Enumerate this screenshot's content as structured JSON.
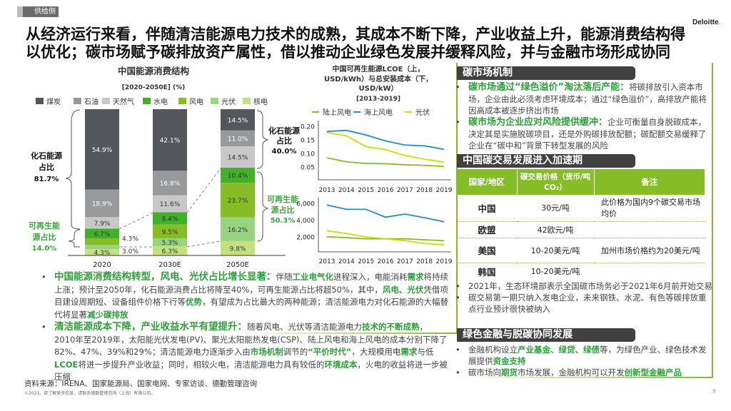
{
  "header": {
    "tag": "供给侧",
    "logo": "Deloitte",
    "title_line1": "从经济运行来看，伴随清洁能源电力技术的成熟，其成本不断下降，产业收益上升，能源消费结构得",
    "title_line2": "以优化；碳市场赋予碳排放资产属性，借以推动企业绿色发展并缓释风险，并与金融市场形成协同"
  },
  "colors": {
    "accent": "#86BC25",
    "highlight": "#2e9e3a",
    "header_bar": "#404040"
  },
  "chart_data": [
    {
      "type": "bar",
      "stacked": true,
      "title": "中国能源消费结构",
      "subtitle": "[2020-2050E] (%)",
      "categories": [
        "2020",
        "2030E",
        "2050E"
      ],
      "series": [
        {
          "name": "煤炭",
          "color": "#53565A",
          "values": [
            54.9,
            42.1,
            14.5
          ]
        },
        {
          "name": "石油",
          "color": "#97999B",
          "values": [
            18.9,
            16.8,
            11.0
          ]
        },
        {
          "name": "天然气",
          "color": "#C8C8C8",
          "values": [
            7.9,
            11.6,
            14.5
          ]
        },
        {
          "name": "水电",
          "color": "#43B02A",
          "values": [
            6.7,
            8.4,
            10.4
          ]
        },
        {
          "name": "风电",
          "color": "#86BC25",
          "values": [
            4.3,
            9.5,
            23.7
          ]
        },
        {
          "name": "光伏",
          "color": "#97D47F",
          "values": [
            3.0,
            5.3,
            16.2
          ]
        },
        {
          "name": "核电",
          "color": "#C4E17F",
          "values": [
            4.3,
            6.3,
            9.8
          ]
        }
      ],
      "annotations": {
        "fossil_label": "化石能源占比",
        "fossil_2020": "81.7%",
        "fossil_2050": "40.0%",
        "renew_label": "可再生能源占比",
        "renew_2020": "14.0%",
        "renew_2050": "50.3%"
      }
    },
    {
      "type": "line",
      "title": "中国可再生能源LCOE（上，USD/kWh）与总安装成本（下，USD/kW）",
      "subtitle": "[2013-2019]",
      "x": [
        "2013",
        "2014",
        "2015",
        "2016",
        "2017",
        "2018",
        "2019"
      ],
      "legend": "top",
      "panels": [
        {
          "ylim": [
            0,
            0.2
          ],
          "yticks": [
            "0.20",
            "0.15",
            "0.10",
            "0.05"
          ],
          "tickvals": [
            0.2,
            0.15,
            0.1,
            0.05
          ],
          "series": [
            {
              "name": "陆上风电",
              "color": "#86BC25",
              "values": [
                0.084,
                0.069,
                0.063,
                0.062,
                0.058,
                0.056,
                0.052
              ]
            },
            {
              "name": "海上风电",
              "color": "#1F8DC4",
              "values": [
                0.181,
                0.185,
                0.168,
                0.146,
                0.131,
                0.128,
                0.115
              ]
            },
            {
              "name": "光伏",
              "color": "#C9DD03",
              "values": [
                0.177,
                0.165,
                0.125,
                0.114,
                0.092,
                0.079,
                0.068
              ]
            }
          ]
        },
        {
          "ylim": [
            0,
            6500
          ],
          "yticks": [
            "6,000",
            "4,000",
            "2,000"
          ],
          "tickvals": [
            6000,
            4000,
            2000
          ],
          "series": [
            {
              "name": "陆上风电",
              "color": "#86BC25",
              "values": [
                2020,
                1910,
                1770,
                1770,
                1770,
                1660,
                1550
              ]
            },
            {
              "name": "海上风电",
              "color": "#1F8DC4",
              "values": [
                5800,
                5290,
                5290,
                4350,
                4720,
                4290,
                3810
              ]
            },
            {
              "name": "光伏",
              "color": "#C9DD03",
              "values": [
                2740,
                2400,
                2000,
                1770,
                1550,
                1210,
                1060
              ]
            }
          ]
        }
      ]
    }
  ],
  "left_bullets": [
    [
      {
        "t": "中国能源消费结构转型，风电、光伏占比增长显著：",
        "lead": true
      },
      {
        "t": "伴随"
      },
      {
        "t": "工业电气化",
        "hl": true
      },
      {
        "t": "进程深入，电能消耗"
      },
      {
        "t": "需求",
        "hl": true
      },
      {
        "t": "将持续上涨；预计至2050年，化石能源消费占比将降至40%，可再生能源占比将超50%，其中，"
      },
      {
        "t": "风电、光伏",
        "hl": true
      },
      {
        "t": "凭借项目建设周期短、设备组件价格下行等"
      },
      {
        "t": "优势",
        "hl": true
      },
      {
        "t": "，有望成为占比最大的两种能源；清洁能源电力对化石能源的大幅替代将显著"
      },
      {
        "t": "减少碳排放",
        "hl": true
      }
    ],
    [
      {
        "t": "清洁能源成本下降，产业收益水平有望提升：",
        "lead": true
      },
      {
        "t": "随着风电、光伏等清洁能源电力"
      },
      {
        "t": "技术的不断成熟",
        "hl": true
      },
      {
        "t": "，2010年至2019年，太阳能光伏发电(PV)、聚光太阳能热发电(CSP)、陆上风电和海上风电的成本分别下降了82%、47%、39%和29%；清洁能源电力逐渐步入由"
      },
      {
        "t": "市场机制",
        "hl": true
      },
      {
        "t": "调节的"
      },
      {
        "t": "“平价时代”",
        "hl": true
      },
      {
        "t": "，大规模用电"
      },
      {
        "t": "需求",
        "hl": true
      },
      {
        "t": "与低"
      },
      {
        "t": "LCOE",
        "hl": true
      },
      {
        "t": "将进一步提升产业收益；同时，相较火电，清洁能源电力具有较低的"
      },
      {
        "t": "环境成本",
        "hl": true
      },
      {
        "t": "，火电的收益将进一步被压缩"
      }
    ]
  ],
  "carbon_mechanism": {
    "title": "碳市场机制",
    "bullets": [
      [
        {
          "t": "碳市场通过“绿色溢价”淘汰落后产能：",
          "lead": true
        },
        {
          "t": "将碳排放引入资本市场，企业由此必须考虑环境成本；通过“绿色溢价”，高排放产能将因高成本被逐步挤出市场"
        }
      ],
      [
        {
          "t": "碳市场为企业应对风险提供缓冲：",
          "lead": true
        },
        {
          "t": "企业可衡量自身脱碳成本，决定其是实施脱碳项目，还是外购碳排放配额；碳配额交易缓释了企业在“碳中和”背景下转型发展的风险"
        }
      ]
    ]
  },
  "carbon_trading": {
    "title": "中国碳交易发展进入加速期",
    "columns": [
      "国家/地区",
      "碳交易价格（货币/吨CO₂）",
      "备注"
    ],
    "rows": [
      {
        "region": "中国",
        "price": "30元/吨",
        "note": "此价格为国内9个碳交易市场均价"
      },
      {
        "region": "欧盟",
        "price": "42欧元/吨",
        "note": ""
      },
      {
        "region": "美国",
        "price": "10-20美元/吨",
        "note": "加州市场价格约为20美元/吨"
      },
      {
        "region": "韩国",
        "price": "10-20美元/吨",
        "note": ""
      }
    ],
    "bullets": [
      [
        {
          "t": "2021年，生态环境部表示全国碳市场务必于2021年6月前开始交易"
        }
      ],
      [
        {
          "t": "碳交易第一期只纳入发电企业，未来钢铁、水泥、有色等碳排放重点行业预计很快被纳入"
        }
      ]
    ]
  },
  "green_finance": {
    "title": "绿色金融与脱碳协同发展",
    "bullets": [
      [
        {
          "t": "金融机构设立"
        },
        {
          "t": "产业基金、绿贷、绿债",
          "hl": true
        },
        {
          "t": "等，为绿色产业、绿色技术发展提供"
        },
        {
          "t": "资金支持",
          "hl": true
        }
      ],
      [
        {
          "t": "碳市场向"
        },
        {
          "t": "期货",
          "hl": true
        },
        {
          "t": "市场发展，金融机构可以开发"
        },
        {
          "t": "创新型金融产品",
          "hl": true
        }
      ]
    ]
  },
  "footer": {
    "source": "资料来源：IRENA、国家能源局、国家电网、专家访谈、德勤管理咨询",
    "copyright": "©2021。欲了解更多信息，请联系德勤管理咨询（上海）有限公司。",
    "page": "7"
  }
}
